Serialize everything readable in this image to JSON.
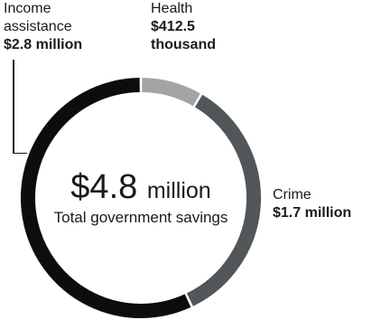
{
  "chart_data": {
    "type": "pie",
    "style": "donut",
    "center": {
      "value_number": "$4.8",
      "value_unit": "million",
      "label": "Total government savings"
    },
    "series": [
      {
        "name": "Health",
        "value_label": "$412.5 thousand",
        "value": 0.4125,
        "color": "#a2a4a5"
      },
      {
        "name": "Crime",
        "value_label": "$1.7 million",
        "value": 1.7,
        "color": "#515658"
      },
      {
        "name": "Income assistance",
        "value_label": "$2.8 million",
        "value": 2.8,
        "color": "#0d0d0d"
      }
    ]
  }
}
